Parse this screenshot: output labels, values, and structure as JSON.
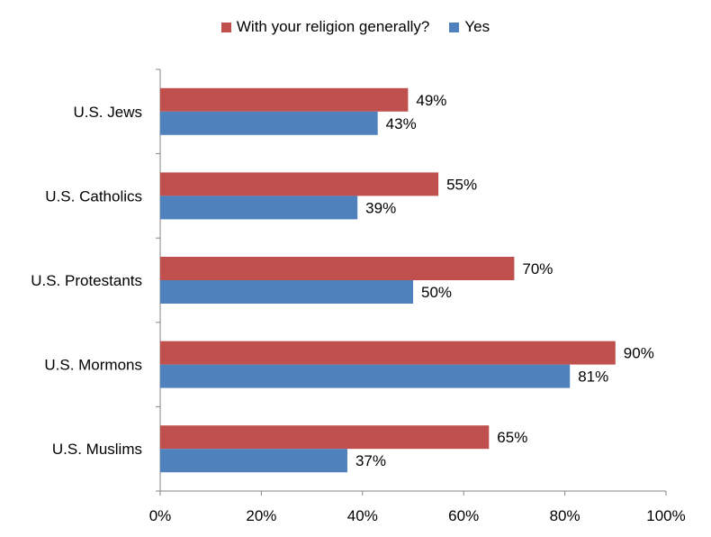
{
  "chart_data": {
    "type": "bar",
    "orientation": "horizontal",
    "categories": [
      "U.S. Jews",
      "U.S. Catholics",
      "U.S. Protestants",
      "U.S. Mormons",
      "U.S. Muslims"
    ],
    "series": [
      {
        "name": "With your religion generally?",
        "color": "#c0504d",
        "values": [
          49,
          55,
          70,
          90,
          65
        ]
      },
      {
        "name": "Yes",
        "color": "#4f81bd",
        "values": [
          43,
          39,
          50,
          81,
          37
        ]
      }
    ],
    "value_labels": [
      [
        "49%",
        "55%",
        "70%",
        "90%",
        "65%"
      ],
      [
        "43%",
        "39%",
        "50%",
        "81%",
        "37%"
      ]
    ],
    "x_ticks": [
      "0%",
      "20%",
      "40%",
      "60%",
      "80%",
      "100%"
    ],
    "xlim": [
      0,
      100
    ],
    "legend_position": "top",
    "grid": false
  }
}
